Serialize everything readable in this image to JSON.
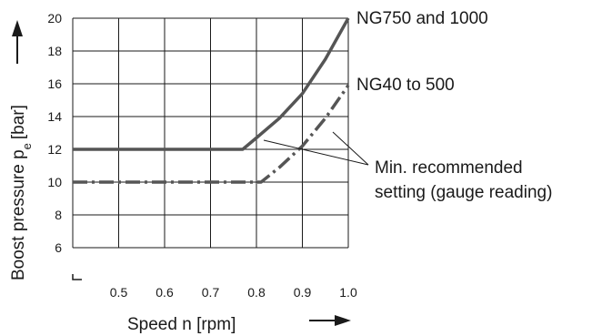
{
  "chart_data": {
    "type": "line",
    "xlabel": "Speed n [rpm]",
    "ylabel": "Boost pressure p",
    "ylabel_sub": "e",
    "ylabel_unit": "[bar]",
    "xlim": [
      0.4,
      1.0
    ],
    "ylim": [
      5,
      20
    ],
    "grid": true,
    "x_ticks": [
      0.5,
      0.6,
      0.7,
      0.8,
      0.9,
      1.0
    ],
    "x_tick_labels": [
      "0.5",
      "0.6",
      "0.7",
      "0.8",
      "0.9",
      "1.0"
    ],
    "y_ticks": [
      6,
      8,
      10,
      12,
      14,
      16,
      18,
      20
    ],
    "y_tick_labels": [
      "6",
      "8",
      "10",
      "12",
      "14",
      "16",
      "18",
      "20"
    ],
    "series": [
      {
        "name": "NG750 and 1000",
        "style": "solid",
        "x": [
          0.4,
          0.77,
          0.8,
          0.85,
          0.9,
          0.95,
          1.0
        ],
        "y": [
          12,
          12,
          12.7,
          13.9,
          15.4,
          17.5,
          20
        ]
      },
      {
        "name": "NG40 to 500",
        "style": "dash-dot",
        "x": [
          0.4,
          0.81,
          0.85,
          0.9,
          0.95,
          1.0
        ],
        "y": [
          10,
          10,
          10.9,
          12.2,
          13.9,
          15.9
        ]
      }
    ],
    "annotation": "Min. recommended setting (gauge reading)",
    "annotation_lines": [
      "Min. recommended",
      "setting (gauge reading)"
    ],
    "colors": {
      "line": "#555555",
      "grid": "#1a1a1a",
      "text": "#1a1a1a"
    }
  }
}
